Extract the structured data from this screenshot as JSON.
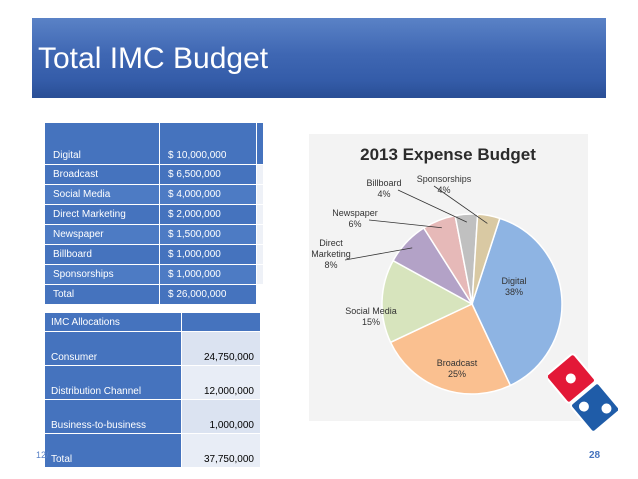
{
  "slide": {
    "title": "Total IMC Budget",
    "footer_left": "12/",
    "page_number": "28"
  },
  "expense_table": {
    "rows": [
      {
        "label": "Digital",
        "value": "$ 10,000,000"
      },
      {
        "label": "Broadcast",
        "value": "$   6,500,000"
      },
      {
        "label": "Social Media",
        "value": "$   4,000,000"
      },
      {
        "label": "Direct Marketing",
        "value": "$   2,000,000"
      },
      {
        "label": "Newspaper",
        "value": "$   1,500,000"
      },
      {
        "label": "Billboard",
        "value": "$   1,000,000"
      },
      {
        "label": "Sponsorships",
        "value": "$   1,000,000"
      },
      {
        "label": "Total",
        "value": "$ 26,000,000"
      }
    ]
  },
  "allocation_table": {
    "header": "IMC Allocations",
    "rows": [
      {
        "label": "Consumer",
        "value": "24,750,000"
      },
      {
        "label": "Distribution Channel",
        "value": "12,000,000"
      },
      {
        "label": "Business-to-business",
        "value": "1,000,000"
      },
      {
        "label": "Total",
        "value": "37,750,000"
      }
    ]
  },
  "chart_data": {
    "type": "pie",
    "title": "2013 Expense Budget",
    "slices": [
      {
        "name": "Digital",
        "label": "38%",
        "value": 38,
        "color": "#8eb4e3"
      },
      {
        "name": "Broadcast",
        "label": "25%",
        "value": 25,
        "color": "#fac090"
      },
      {
        "name": "Social Media",
        "label": "15%",
        "value": 15,
        "color": "#d7e4bd"
      },
      {
        "name": "Direct Marketing",
        "label": "8%",
        "value": 8,
        "color": "#b3a2c7"
      },
      {
        "name": "Newspaper",
        "label": "6%",
        "value": 6,
        "color": "#e6b9b8"
      },
      {
        "name": "Billboard",
        "label": "4%",
        "value": 4,
        "color": "#c0c0c0"
      },
      {
        "name": "Sponsorships",
        "label": "4%",
        "value": 4,
        "color": "#d9c9a3"
      }
    ]
  },
  "colors": {
    "title_bar": "#3f67b3",
    "table_fill": "#4573be",
    "logo_blue": "#1f5ca8",
    "logo_red": "#e31837"
  },
  "logo": {
    "icon": "domino-logo-icon"
  }
}
